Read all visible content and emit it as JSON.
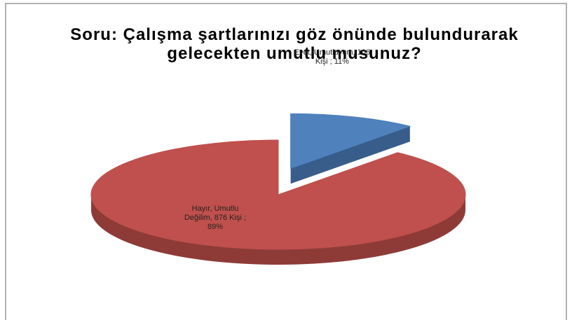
{
  "chart_data": {
    "type": "pie",
    "title": "Soru: Çalışma şartlarınızı göz önünde bulundurarak gelecekten umutlu musunuz?",
    "values": [
      11,
      89
    ],
    "value_labels": [
      "Evet, Umutluyum, 106 Kişi ; 11%",
      "Hayır, Umutlu Değilim, 876 Kişi ; 89%"
    ],
    "colors": [
      "#4f81bd",
      "#c0504d"
    ],
    "side_colors": [
      "#385d8a",
      "#8e3b38"
    ],
    "exploded": [
      true,
      false
    ]
  }
}
